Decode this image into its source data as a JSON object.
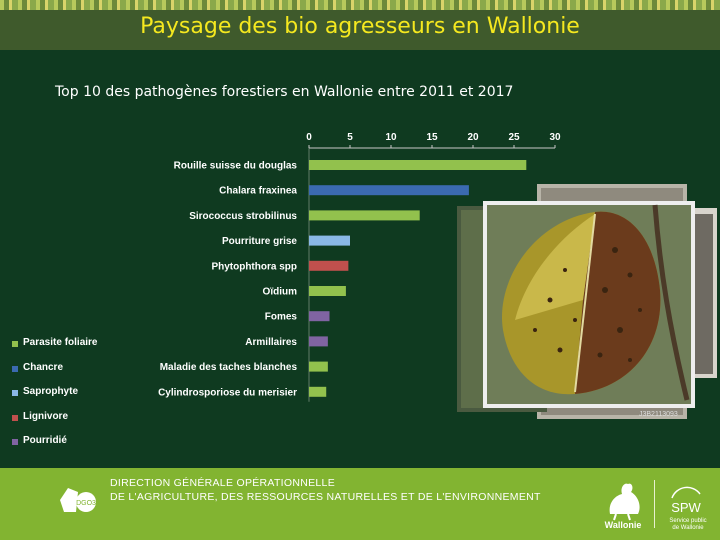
{
  "header": {
    "title": "Paysage des bio agresseurs en Wallonie"
  },
  "subtitle": "Top 10 des pathogènes forestiers en Wallonie entre 2011 et 2017",
  "chart_data": {
    "type": "bar",
    "orientation": "horizontal",
    "categories": [
      "Rouille suisse du douglas",
      "Chalara fraxinea",
      "Sirococcus strobilinus",
      "Pourriture grise",
      "Phytophthora spp",
      "Oïdium",
      "Fomes",
      "Armillaires",
      "Maladie des taches blanches",
      "Cylindrosporiose du merisier"
    ],
    "values": [
      26.5,
      19.5,
      13.5,
      5,
      4.8,
      4.5,
      2.5,
      2.3,
      2.3,
      2.1
    ],
    "group": [
      "Parasite foliaire",
      "Chancre",
      "Parasite foliaire",
      "Saprophyte",
      "Lignivore",
      "Parasite foliaire",
      "Pourridié",
      "Pourridié",
      "Parasite foliaire",
      "Parasite foliaire"
    ],
    "xticks": [
      "0",
      "5",
      "10",
      "15",
      "20",
      "25",
      "30"
    ],
    "xlim": [
      0,
      30
    ],
    "axis_position": "top",
    "grid": false,
    "legend_position": "bottom-left"
  },
  "legend": [
    {
      "label": "Parasite foliaire",
      "color": "#92c14d"
    },
    {
      "label": "Chancre",
      "color": "#3b6ab0"
    },
    {
      "label": "Saprophyte",
      "color": "#8ab8e6"
    },
    {
      "label": "Lignivore",
      "color": "#c0504d"
    },
    {
      "label": "Pourridié",
      "color": "#8064a2"
    }
  ],
  "footer": {
    "line1": "DIRECTION GÉNÉRALE OPÉRATIONNELLE",
    "line2": "DE L'AGRICULTURE, DES RESSOURCES NATURELLES ET DE L'ENVIRONNEMENT",
    "logo_text": "DGO3",
    "wallonie": "Wallonie",
    "spw": "SPW",
    "spw_sub1": "Service public",
    "spw_sub2": "de Wallonie"
  },
  "photo_caption": "J3B2113093",
  "icons": {
    "left_logo": "dgo3-logo-icon",
    "rooster": "wallonie-rooster-icon",
    "spw": "spw-logo-icon"
  }
}
